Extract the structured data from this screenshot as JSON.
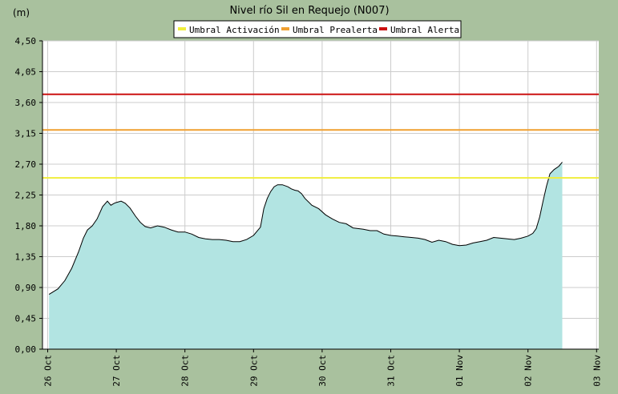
{
  "chart_data": {
    "type": "area",
    "title": "Nivel río Sil en Requejo  (N007)",
    "ylabel": "(m)",
    "xlabel": "",
    "ylim": [
      0,
      4.5
    ],
    "xlim": [
      0,
      8
    ],
    "y_ticks": [
      "0,00",
      "0,45",
      "0,90",
      "1,35",
      "1,80",
      "2,25",
      "2,70",
      "3,15",
      "3,60",
      "4,05",
      "4,50"
    ],
    "y_tick_values": [
      0,
      0.45,
      0.9,
      1.35,
      1.8,
      2.25,
      2.7,
      3.15,
      3.6,
      4.05,
      4.5
    ],
    "x_ticks": [
      "26 Oct",
      "27 Oct",
      "28 Oct",
      "29 Oct",
      "30 Oct",
      "31 Oct",
      "01 Nov",
      "02 Nov",
      "03 Nov"
    ],
    "x_tick_values": [
      0,
      1,
      2,
      3,
      4,
      5,
      6,
      7,
      8
    ],
    "grid": true,
    "legend": "top-center",
    "legend_entries": [
      {
        "name": "Umbral Activación",
        "color": "#f0ee3c"
      },
      {
        "name": "Umbral Prealerta",
        "color": "#f0a030"
      },
      {
        "name": "Umbral Alerta",
        "color": "#cc1111"
      }
    ],
    "thresholds": [
      {
        "name": "Umbral Activación",
        "value": 2.5,
        "color": "#f0ee3c"
      },
      {
        "name": "Umbral Prealerta",
        "value": 3.2,
        "color": "#f0a030"
      },
      {
        "name": "Umbral Alerta",
        "value": 3.72,
        "color": "#cc1111"
      }
    ],
    "series": [
      {
        "fill": "#b2e4e2",
        "x": [
          0.02,
          0.15,
          0.25,
          0.35,
          0.45,
          0.52,
          0.58,
          0.65,
          0.72,
          0.8,
          0.87,
          0.92,
          0.97,
          1.0,
          1.07,
          1.13,
          1.2,
          1.28,
          1.35,
          1.42,
          1.5,
          1.6,
          1.65,
          1.7,
          1.8,
          1.9,
          2.0,
          2.1,
          2.2,
          2.3,
          2.4,
          2.5,
          2.6,
          2.7,
          2.8,
          2.9,
          3.0,
          3.1,
          3.15,
          3.2,
          3.25,
          3.3,
          3.35,
          3.42,
          3.5,
          3.55,
          3.6,
          3.65,
          3.7,
          3.75,
          3.85,
          3.95,
          4.05,
          4.15,
          4.25,
          4.35,
          4.45,
          4.6,
          4.7,
          4.8,
          4.9,
          5.0,
          5.1,
          5.2,
          5.3,
          5.4,
          5.5,
          5.6,
          5.7,
          5.8,
          5.9,
          6.0,
          6.1,
          6.2,
          6.3,
          6.4,
          6.5,
          6.6,
          6.7,
          6.8,
          6.9,
          7.0,
          7.07,
          7.12,
          7.17,
          7.22,
          7.27,
          7.32,
          7.38,
          7.45,
          7.5
        ],
        "values": [
          0.8,
          0.88,
          1.0,
          1.18,
          1.42,
          1.62,
          1.74,
          1.8,
          1.9,
          2.08,
          2.16,
          2.1,
          2.13,
          2.14,
          2.16,
          2.13,
          2.06,
          1.94,
          1.85,
          1.79,
          1.77,
          1.8,
          1.79,
          1.78,
          1.74,
          1.71,
          1.71,
          1.68,
          1.63,
          1.61,
          1.6,
          1.6,
          1.59,
          1.57,
          1.57,
          1.6,
          1.66,
          1.78,
          2.05,
          2.2,
          2.3,
          2.37,
          2.4,
          2.4,
          2.37,
          2.34,
          2.32,
          2.31,
          2.27,
          2.2,
          2.1,
          2.05,
          1.96,
          1.9,
          1.85,
          1.83,
          1.77,
          1.75,
          1.73,
          1.73,
          1.68,
          1.66,
          1.65,
          1.64,
          1.63,
          1.62,
          1.6,
          1.56,
          1.59,
          1.57,
          1.53,
          1.51,
          1.52,
          1.55,
          1.57,
          1.59,
          1.63,
          1.62,
          1.61,
          1.6,
          1.62,
          1.65,
          1.69,
          1.76,
          1.93,
          2.16,
          2.38,
          2.56,
          2.62,
          2.67,
          2.73
        ]
      }
    ]
  }
}
